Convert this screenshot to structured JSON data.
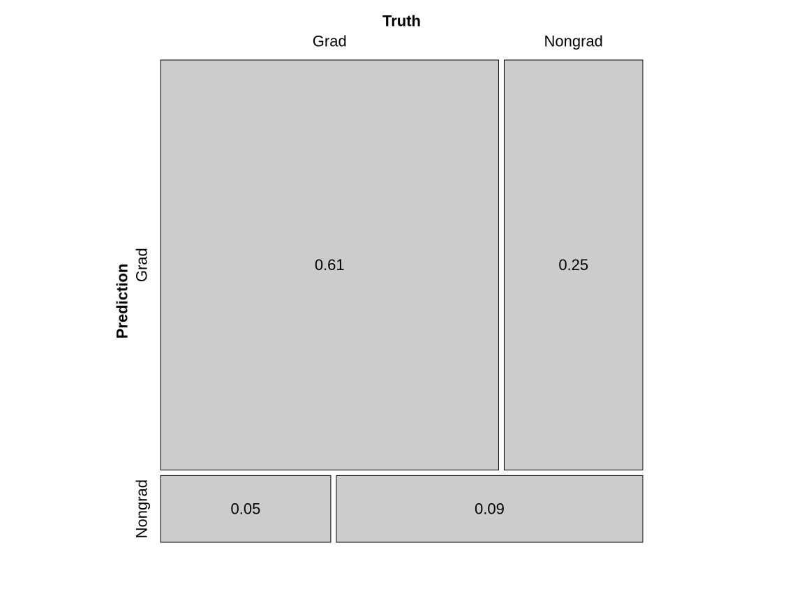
{
  "chart_data": {
    "type": "mosaic",
    "x_axis_title": "Truth",
    "y_axis_title": "Prediction",
    "truth_levels": [
      "Grad",
      "Nongrad"
    ],
    "prediction_levels": [
      "Grad",
      "Nongrad"
    ],
    "cells": [
      {
        "prediction": "Grad",
        "truth": "Grad",
        "value": 0.61,
        "label": "0.61"
      },
      {
        "prediction": "Grad",
        "truth": "Nongrad",
        "value": 0.25,
        "label": "0.25"
      },
      {
        "prediction": "Nongrad",
        "truth": "Grad",
        "value": 0.05,
        "label": "0.05"
      },
      {
        "prediction": "Nongrad",
        "truth": "Nongrad",
        "value": 0.09,
        "label": "0.09"
      }
    ],
    "fill_color": "#cccccc",
    "border_color": "#000000"
  }
}
